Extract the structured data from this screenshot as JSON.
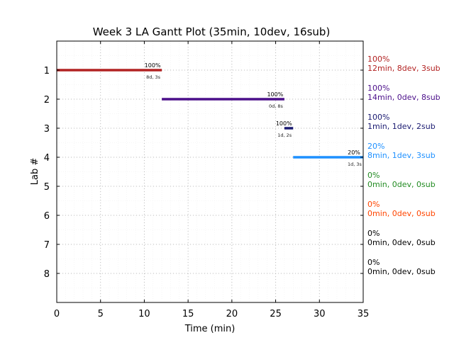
{
  "chart_data": {
    "type": "gantt",
    "title": "Week 3 LA Gantt Plot (35min, 10dev, 16sub)",
    "xlabel": "Time (min)",
    "ylabel": "Lab #",
    "xlim": [
      0,
      35
    ],
    "ylim": [
      9,
      0
    ],
    "xticks": [
      0,
      5,
      10,
      15,
      20,
      25,
      30,
      35
    ],
    "yticks": [
      1,
      2,
      3,
      4,
      5,
      6,
      7,
      8
    ],
    "grid": true,
    "bars": [
      {
        "lab": 1,
        "start": 0,
        "end": 12,
        "color": "#b22222",
        "pct": "100%",
        "sub": "8d, 3s"
      },
      {
        "lab": 2,
        "start": 12,
        "end": 26,
        "color": "#4b0f8a",
        "pct": "100%",
        "sub": "0d, 8s"
      },
      {
        "lab": 3,
        "start": 26,
        "end": 27,
        "color": "#191970",
        "pct": "100%",
        "sub": "1d, 2s"
      },
      {
        "lab": 4,
        "start": 27,
        "end": 35,
        "color": "#1e90ff",
        "pct": "20%",
        "sub": "1d, 3s"
      }
    ],
    "side_labels": [
      {
        "lab": 1,
        "pct": "100%",
        "summary": "12min, 8dev, 3sub",
        "color": "#b22222"
      },
      {
        "lab": 2,
        "pct": "100%",
        "summary": "14min, 0dev, 8sub",
        "color": "#4b0f8a"
      },
      {
        "lab": 3,
        "pct": "100%",
        "summary": "1min, 1dev, 2sub",
        "color": "#191970"
      },
      {
        "lab": 4,
        "pct": "20%",
        "summary": "8min, 1dev, 3sub",
        "color": "#1e90ff"
      },
      {
        "lab": 5,
        "pct": "0%",
        "summary": "0min, 0dev, 0sub",
        "color": "#228b22"
      },
      {
        "lab": 6,
        "pct": "0%",
        "summary": "0min, 0dev, 0sub",
        "color": "#ff4500"
      },
      {
        "lab": 7,
        "pct": "0%",
        "summary": "0min, 0dev, 0sub",
        "color": "#000000"
      },
      {
        "lab": 8,
        "pct": "0%",
        "summary": "0min, 0dev, 0sub",
        "color": "#000000"
      }
    ]
  }
}
